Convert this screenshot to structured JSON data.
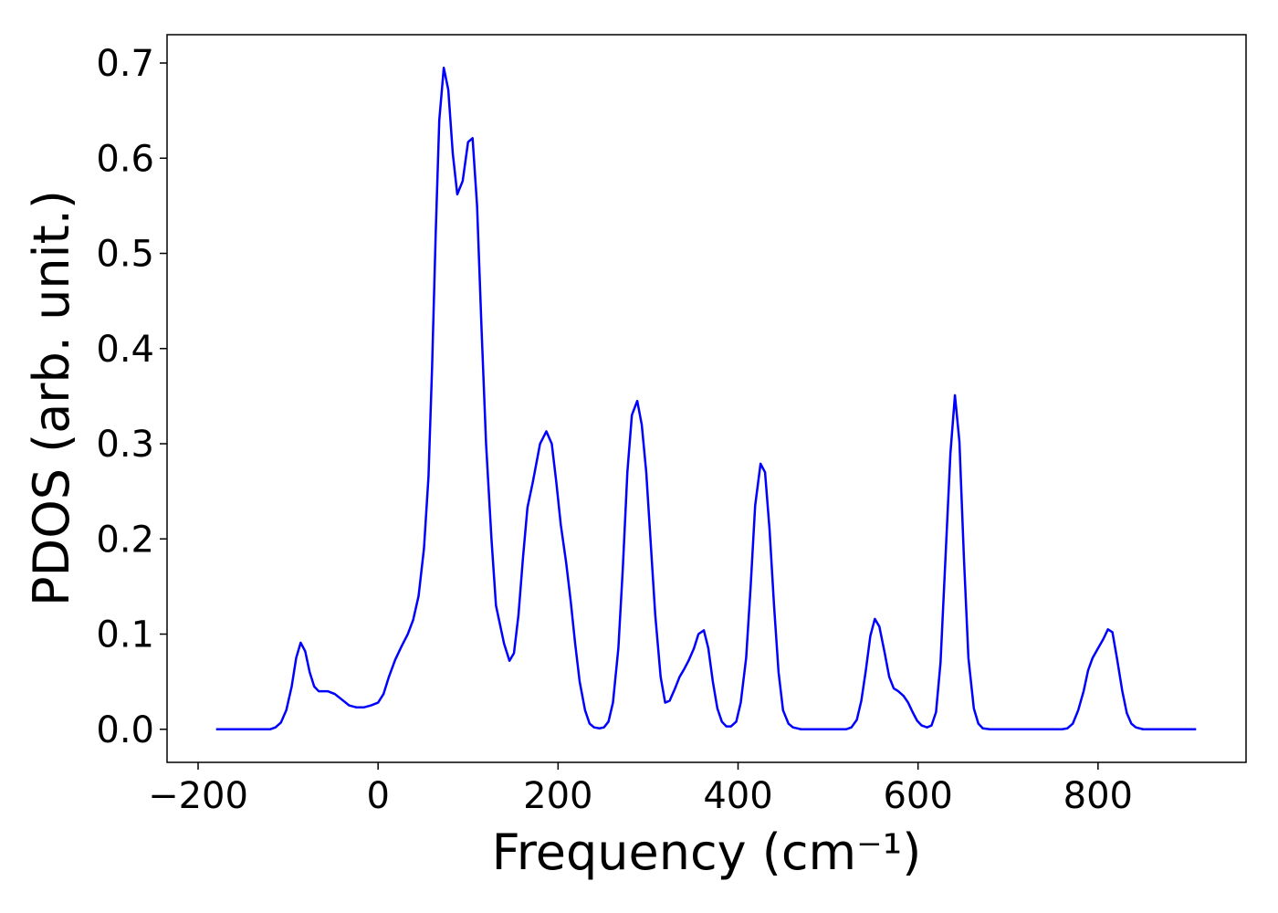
{
  "chart_data": {
    "type": "line",
    "xlabel": "Frequency (cm⁻¹)",
    "ylabel": "PDOS (arb. unit.)",
    "xlim": [
      -234.5,
      964.5
    ],
    "ylim": [
      -0.03475,
      0.72975
    ],
    "xticks": [
      {
        "value": -200,
        "label": "−200"
      },
      0,
      200,
      400,
      600,
      800
    ],
    "yticks": [
      {
        "value": 0,
        "label": "0.0"
      },
      0.1,
      0.2,
      0.3,
      0.4,
      0.5,
      0.6,
      0.7
    ],
    "grid": false,
    "series": [
      {
        "color": "#0000ff",
        "x": [
          -180,
          -120,
          -114,
          -108,
          -102,
          -96,
          -91,
          -86,
          -81,
          -76,
          -71,
          -66,
          -56,
          -48,
          -40,
          -32,
          -24,
          -16,
          -8,
          0,
          6,
          12,
          19,
          26,
          33,
          39,
          45,
          51,
          56,
          60,
          64,
          68,
          73,
          78,
          83,
          88,
          94,
          100,
          105,
          110,
          115,
          120,
          126,
          131,
          140,
          146,
          151,
          156,
          161,
          166,
          172,
          180,
          187,
          193,
          198,
          203,
          209,
          214,
          219,
          224,
          230,
          235,
          240,
          246,
          251,
          256,
          261,
          267,
          272,
          277,
          282,
          288,
          293,
          298,
          303,
          308,
          314,
          319,
          324,
          330,
          335,
          340,
          345,
          351,
          356,
          362,
          367,
          372,
          377,
          382,
          387,
          392,
          398,
          403,
          409,
          414,
          419,
          425,
          430,
          435,
          440,
          445,
          450,
          456,
          461,
          470,
          520,
          526,
          532,
          537,
          542,
          547,
          552,
          557,
          563,
          568,
          573,
          578,
          584,
          589,
          594,
          599,
          604,
          610,
          615,
          620,
          625,
          630,
          636,
          641,
          646,
          651,
          656,
          662,
          667,
          672,
          680,
          760,
          766,
          772,
          778,
          784,
          789,
          794,
          800,
          806,
          811,
          816,
          821,
          827,
          832,
          837,
          842,
          850,
          909
        ],
        "values": [
          0,
          0,
          0.002,
          0.007,
          0.02,
          0.045,
          0.075,
          0.091,
          0.082,
          0.06,
          0.045,
          0.04,
          0.04,
          0.037,
          0.031,
          0.025,
          0.023,
          0.023,
          0.025,
          0.028,
          0.037,
          0.055,
          0.073,
          0.087,
          0.1,
          0.115,
          0.14,
          0.19,
          0.265,
          0.38,
          0.52,
          0.64,
          0.695,
          0.672,
          0.605,
          0.562,
          0.576,
          0.617,
          0.621,
          0.55,
          0.42,
          0.3,
          0.2,
          0.13,
          0.09,
          0.072,
          0.08,
          0.12,
          0.18,
          0.233,
          0.26,
          0.3,
          0.313,
          0.3,
          0.26,
          0.215,
          0.175,
          0.135,
          0.09,
          0.05,
          0.02,
          0.006,
          0.002,
          0.001,
          0.002,
          0.008,
          0.028,
          0.085,
          0.17,
          0.27,
          0.33,
          0.345,
          0.32,
          0.27,
          0.195,
          0.12,
          0.055,
          0.028,
          0.03,
          0.043,
          0.055,
          0.063,
          0.072,
          0.085,
          0.1,
          0.104,
          0.085,
          0.05,
          0.022,
          0.008,
          0.003,
          0.003,
          0.008,
          0.028,
          0.075,
          0.15,
          0.235,
          0.279,
          0.27,
          0.21,
          0.13,
          0.06,
          0.02,
          0.006,
          0.002,
          0,
          0,
          0.002,
          0.01,
          0.03,
          0.062,
          0.098,
          0.116,
          0.108,
          0.08,
          0.055,
          0.043,
          0.04,
          0.035,
          0.028,
          0.018,
          0.009,
          0.004,
          0.002,
          0.004,
          0.018,
          0.07,
          0.17,
          0.29,
          0.351,
          0.302,
          0.18,
          0.075,
          0.022,
          0.006,
          0.001,
          0,
          0,
          0.001,
          0.006,
          0.02,
          0.04,
          0.062,
          0.075,
          0.085,
          0.095,
          0.105,
          0.102,
          0.075,
          0.04,
          0.017,
          0.006,
          0.002,
          0,
          0
        ]
      }
    ]
  }
}
